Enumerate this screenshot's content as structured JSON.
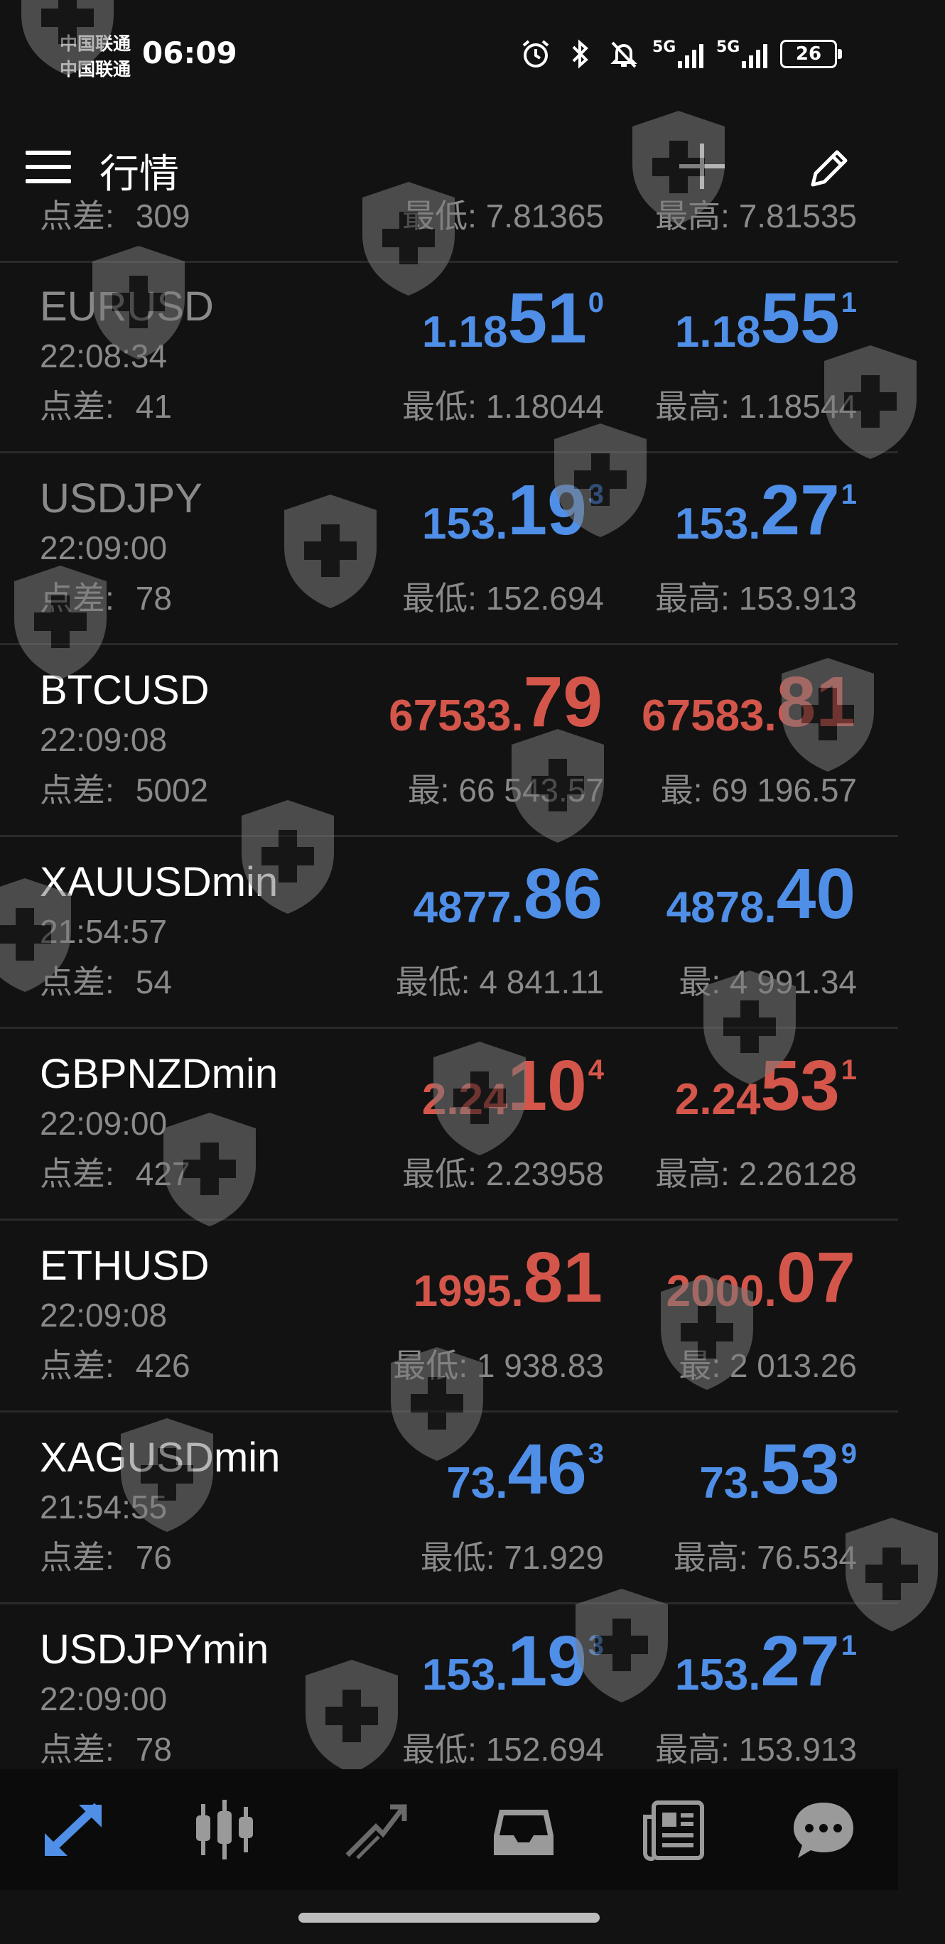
{
  "status_bar": {
    "carrier_1": "中国联通",
    "carrier_2": "中国联通",
    "time": "06:09",
    "network_1": "5G",
    "network_2": "5G",
    "battery": "26",
    "icons": [
      "alarm-icon",
      "bluetooth-icon",
      "mute-icon",
      "signal-icon",
      "signal-icon",
      "battery-icon"
    ]
  },
  "app_bar": {
    "title": "行情",
    "icons": [
      "menu-icon",
      "plus-icon",
      "edit-icon"
    ]
  },
  "colors": {
    "up": "#4f8fe8",
    "down": "#d4564b",
    "background": "#121212",
    "muted": "#8a8a8a"
  },
  "partial_top_row": {
    "spread_label": "点差:",
    "spread": "309",
    "low": "最低: 7.81365",
    "high": "最高: 7.81535"
  },
  "quotes": [
    {
      "symbol": "EURUSD",
      "time": "22:08:34",
      "spread_label": "点差:",
      "spread": "41",
      "color": "blue",
      "bid": {
        "p1": "1.18",
        "p2": "51",
        "p3": "0"
      },
      "ask": {
        "p1": "1.18",
        "p2": "55",
        "p3": "1"
      },
      "low": "最低: 1.18044",
      "high": "最高: 1.18544"
    },
    {
      "symbol": "USDJPY",
      "time": "22:09:00",
      "spread_label": "点差:",
      "spread": "78",
      "color": "blue",
      "bid": {
        "p1": "153.",
        "p2": "19",
        "p3": "3"
      },
      "ask": {
        "p1": "153.",
        "p2": "27",
        "p3": "1"
      },
      "low": "最低: 152.694",
      "high": "最高: 153.913"
    },
    {
      "symbol": "BTCUSD",
      "time": "22:09:08",
      "spread_label": "点差:",
      "spread": "5002",
      "color": "red",
      "bid": {
        "p1": "67533.",
        "p2": "79",
        "p3": ""
      },
      "ask": {
        "p1": "67583.",
        "p2": "81",
        "p3": ""
      },
      "low": "最: 66 543.57",
      "high": "最: 69 196.57"
    },
    {
      "symbol": "XAUUSDmin",
      "time": "21:54:57",
      "spread_label": "点差:",
      "spread": "54",
      "color": "blue",
      "bid": {
        "p1": "4877.",
        "p2": "86",
        "p3": ""
      },
      "ask": {
        "p1": "4878.",
        "p2": "40",
        "p3": ""
      },
      "low": "最低: 4 841.11",
      "high": "最: 4 991.34"
    },
    {
      "symbol": "GBPNZDmin",
      "time": "22:09:00",
      "spread_label": "点差:",
      "spread": "427",
      "color": "red",
      "bid": {
        "p1": "2.24",
        "p2": "10",
        "p3": "4"
      },
      "ask": {
        "p1": "2.24",
        "p2": "53",
        "p3": "1"
      },
      "low": "最低: 2.23958",
      "high": "最高: 2.26128"
    },
    {
      "symbol": "ETHUSD",
      "time": "22:09:08",
      "spread_label": "点差:",
      "spread": "426",
      "color": "red",
      "bid": {
        "p1": "1995.",
        "p2": "81",
        "p3": ""
      },
      "ask": {
        "p1": "2000.",
        "p2": "07",
        "p3": ""
      },
      "low": "最低: 1 938.83",
      "high": "最: 2 013.26"
    },
    {
      "symbol": "XAGUSDmin",
      "time": "21:54:55",
      "spread_label": "点差:",
      "spread": "76",
      "color": "blue",
      "bid": {
        "p1": "73.",
        "p2": "46",
        "p3": "3"
      },
      "ask": {
        "p1": "73.",
        "p2": "53",
        "p3": "9"
      },
      "low": "最低: 71.929",
      "high": "最高: 76.534"
    },
    {
      "symbol": "USDJPYmin",
      "time": "22:09:00",
      "spread_label": "点差:",
      "spread": "78",
      "color": "blue",
      "bid": {
        "p1": "153.",
        "p2": "19",
        "p3": "3"
      },
      "ask": {
        "p1": "153.",
        "p2": "27",
        "p3": "1"
      },
      "low": "最低: 152.694",
      "high": "最高: 153.913"
    }
  ],
  "bottom_nav": [
    {
      "name": "quotes",
      "icon": "quotes-arrows-icon",
      "active": true
    },
    {
      "name": "chart",
      "icon": "candlestick-icon",
      "active": false
    },
    {
      "name": "trade",
      "icon": "trend-icon",
      "active": false
    },
    {
      "name": "history",
      "icon": "inbox-icon",
      "active": false
    },
    {
      "name": "news",
      "icon": "news-icon",
      "active": false
    },
    {
      "name": "chat",
      "icon": "chat-icon",
      "active": false
    }
  ]
}
